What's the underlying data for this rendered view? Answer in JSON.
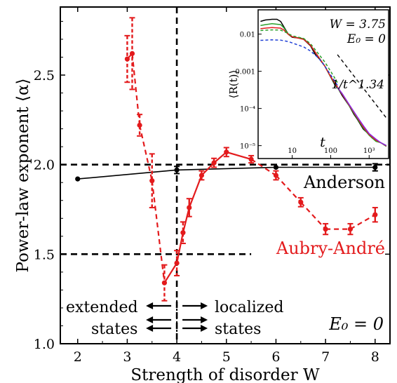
{
  "chart_data": {
    "type": "line",
    "xlabel": "Strength of disorder W",
    "ylabel": "Power-law exponent ⟨α⟩",
    "xlim": [
      1.65,
      8.3
    ],
    "ylim": [
      1.0,
      2.88
    ],
    "xticks": [
      2,
      3,
      4,
      5,
      6,
      7,
      8
    ],
    "yticks": [
      1.0,
      1.5,
      2.0,
      2.5
    ],
    "xtick_labels": [
      "2",
      "3",
      "4",
      "5",
      "6",
      "7",
      "8"
    ],
    "ytick_labels": [
      "1.0",
      "1.5",
      "2.0",
      "2.5"
    ],
    "reference_lines": {
      "horizontal_2_0": {
        "y": 2.0
      },
      "horizontal_1_5": {
        "y": 1.5,
        "x_from": 1.65,
        "x_to": 5.5
      },
      "vertical_4": {
        "x": 4.0
      }
    },
    "series": [
      {
        "name": "Anderson",
        "color": "#000000",
        "line_style": "solid",
        "points": [
          {
            "x": 2.0,
            "y": 1.92,
            "err": 0.0
          },
          {
            "x": 4.0,
            "y": 1.97,
            "err": 0.02
          },
          {
            "x": 6.0,
            "y": 1.985,
            "err": 0.0
          },
          {
            "x": 8.0,
            "y": 1.985,
            "err": 0.02
          }
        ]
      },
      {
        "name": "Aubry-André",
        "color": "#e31a1c",
        "points": [
          {
            "x": 3.0,
            "y": 2.59,
            "err": 0.13
          },
          {
            "x": 3.1,
            "y": 2.62,
            "err": 0.2
          },
          {
            "x": 3.25,
            "y": 2.22,
            "err": 0.06
          },
          {
            "x": 3.5,
            "y": 1.91,
            "err": 0.15
          },
          {
            "x": 3.75,
            "y": 1.34,
            "err": 0.1
          },
          {
            "x": 4.0,
            "y": 1.45,
            "err": 0.07
          },
          {
            "x": 4.125,
            "y": 1.62,
            "err": 0.06
          },
          {
            "x": 4.25,
            "y": 1.76,
            "err": 0.05
          },
          {
            "x": 4.5,
            "y": 1.94,
            "err": 0.025
          },
          {
            "x": 4.75,
            "y": 2.01,
            "err": 0.025
          },
          {
            "x": 5.0,
            "y": 2.07,
            "err": 0.025
          },
          {
            "x": 5.5,
            "y": 2.03,
            "err": 0.02
          },
          {
            "x": 6.0,
            "y": 1.94,
            "err": 0.025
          },
          {
            "x": 6.5,
            "y": 1.79,
            "err": 0.025
          },
          {
            "x": 7.0,
            "y": 1.64,
            "err": 0.03
          },
          {
            "x": 7.5,
            "y": 1.64,
            "err": 0.03
          },
          {
            "x": 8.0,
            "y": 1.72,
            "err": 0.04
          }
        ],
        "solid_x_range": [
          3.75,
          5.5
        ]
      }
    ],
    "labels": {
      "anderson": "Anderson",
      "aubry_andre": "Aubry-André",
      "energy": "E₀ = 0"
    },
    "arrows": {
      "left_top": "extended",
      "left_bottom": "states",
      "right_top": "localized",
      "right_bottom": "states"
    },
    "inset": {
      "ylabel": "⟨R(t)⟩",
      "xlabel": "t",
      "xlim": [
        1.3,
        3200
      ],
      "ylim": [
        4.5e-06,
        0.045
      ],
      "yticks": [
        0.01,
        0.001,
        0.0001,
        1e-05
      ],
      "ytick_labels": [
        "0.01",
        "0.001",
        "10⁻⁴",
        "10⁻⁵"
      ],
      "xticks": [
        10,
        100,
        1000
      ],
      "xtick_labels": [
        "10",
        "100",
        "10³"
      ],
      "params": [
        "W = 3.75",
        "E₀ = 0"
      ],
      "slope_label": "1/t^1.34",
      "fit_slope": -1.34,
      "curves": [
        {
          "color": "#000000",
          "dashed": false,
          "pts": [
            [
              1.5,
              0.022
            ],
            [
              2,
              0.024
            ],
            [
              3,
              0.025
            ],
            [
              4,
              0.025
            ],
            [
              5,
              0.022
            ],
            [
              6,
              0.016
            ],
            [
              8,
              0.0098
            ],
            [
              10,
              0.0082
            ],
            [
              15,
              0.0078
            ],
            [
              20,
              0.0072
            ],
            [
              30,
              0.0048
            ],
            [
              40,
              0.0028
            ],
            [
              50,
              0.0022
            ],
            [
              70,
              0.0014
            ],
            [
              100,
              0.0007
            ],
            [
              130,
              0.00042
            ],
            [
              160,
              0.00033
            ],
            [
              200,
              0.00022
            ],
            [
              300,
              0.00012
            ],
            [
              400,
              7e-05
            ],
            [
              500,
              5e-05
            ],
            [
              700,
              2.8e-05
            ],
            [
              900,
              2.2e-05
            ],
            [
              1200,
              1.6e-05
            ],
            [
              1500,
              1.4e-05
            ],
            [
              2000,
              1.2e-05
            ],
            [
              2800,
              1e-05
            ]
          ]
        },
        {
          "color": "#2ca02c",
          "dashed": false,
          "pts": [
            [
              1.5,
              0.017
            ],
            [
              2,
              0.018
            ],
            [
              3,
              0.019
            ],
            [
              5,
              0.018
            ],
            [
              6,
              0.015
            ],
            [
              8,
              0.0098
            ],
            [
              10,
              0.0085
            ],
            [
              20,
              0.0075
            ],
            [
              30,
              0.005
            ],
            [
              50,
              0.0023
            ],
            [
              70,
              0.0014
            ],
            [
              100,
              0.0007
            ],
            [
              150,
              0.00036
            ],
            [
              200,
              0.00024
            ],
            [
              300,
              0.00012
            ],
            [
              500,
              5.2e-05
            ],
            [
              700,
              3e-05
            ],
            [
              1000,
              1.9e-05
            ],
            [
              1500,
              1.3e-05
            ],
            [
              2000,
              1.2e-05
            ],
            [
              2800,
              9.5e-06
            ]
          ]
        },
        {
          "color": "#e31a1c",
          "dashed": false,
          "pts": [
            [
              1.5,
              0.014
            ],
            [
              2,
              0.0145
            ],
            [
              3,
              0.015
            ],
            [
              5,
              0.0145
            ],
            [
              6,
              0.013
            ],
            [
              8,
              0.0098
            ],
            [
              10,
              0.0085
            ],
            [
              20,
              0.0072
            ],
            [
              30,
              0.005
            ],
            [
              50,
              0.0023
            ],
            [
              70,
              0.0014
            ],
            [
              100,
              0.00072
            ],
            [
              150,
              0.00038
            ],
            [
              200,
              0.00024
            ],
            [
              300,
              0.000125
            ],
            [
              500,
              5.5e-05
            ],
            [
              700,
              3.2e-05
            ],
            [
              1000,
              2e-05
            ],
            [
              1500,
              1.4e-05
            ],
            [
              2000,
              1.2e-05
            ],
            [
              2800,
              9.8e-06
            ]
          ]
        },
        {
          "color": "#8a2be2",
          "dashed": false,
          "pts": [
            [
              150,
              0.00037
            ],
            [
              200,
              0.00025
            ],
            [
              300,
              0.00013
            ],
            [
              500,
              5.8e-05
            ],
            [
              700,
              3.5e-05
            ],
            [
              1000,
              2.1e-05
            ],
            [
              1500,
              1.5e-05
            ],
            [
              2000,
              1.2e-05
            ],
            [
              2800,
              1e-05
            ]
          ]
        },
        {
          "color": "#2ca02c",
          "dashed": true,
          "pts": [
            [
              1.5,
              0.0125
            ],
            [
              3,
              0.013
            ],
            [
              5,
              0.0128
            ],
            [
              7,
              0.011
            ],
            [
              10,
              0.009
            ],
            [
              20,
              0.0076
            ],
            [
              30,
              0.0055
            ],
            [
              50,
              0.0028
            ],
            [
              70,
              0.0018
            ],
            [
              100,
              0.001
            ],
            [
              150,
              0.0005
            ]
          ]
        },
        {
          "color": "#1f3fd6",
          "dashed": true,
          "pts": [
            [
              1.5,
              0.0068
            ],
            [
              3,
              0.007
            ],
            [
              5,
              0.0069
            ],
            [
              8,
              0.0063
            ],
            [
              10,
              0.0058
            ],
            [
              20,
              0.0045
            ],
            [
              30,
              0.0035
            ],
            [
              50,
              0.0022
            ],
            [
              70,
              0.0014
            ],
            [
              100,
              0.0008
            ],
            [
              150,
              0.00042
            ]
          ]
        }
      ]
    }
  }
}
